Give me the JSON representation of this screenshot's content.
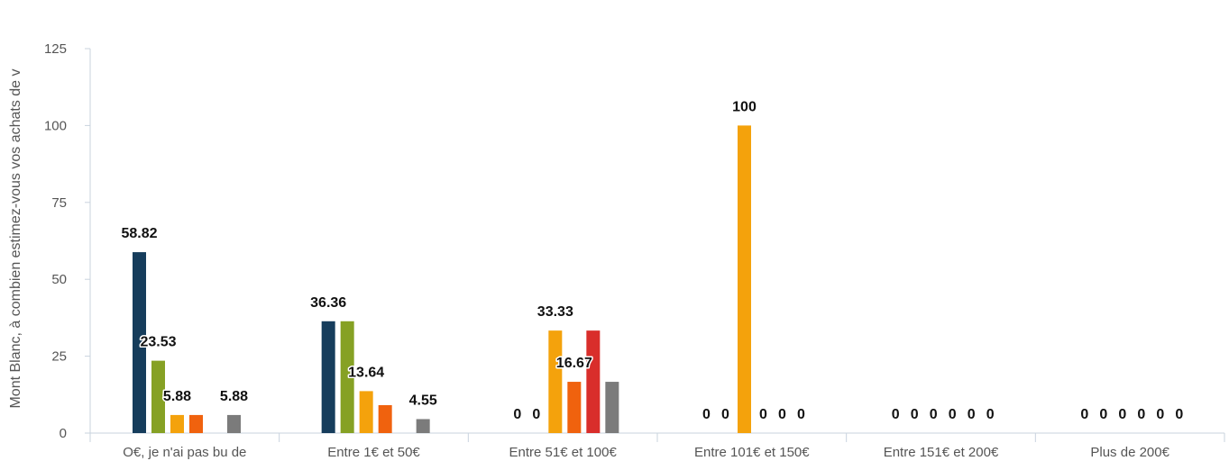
{
  "chart_data": {
    "type": "bar",
    "title": "",
    "xlabel": "",
    "ylabel": "Mont Blanc, à combien estimez-vous vos achats de v",
    "ylim": [
      0,
      125
    ],
    "yticks": [
      0,
      25,
      50,
      75,
      100,
      125
    ],
    "grid": false,
    "legend": "none",
    "categories": [
      "O€, je n'ai pas bu de",
      "Entre 1€ et 50€",
      "Entre 51€ et 100€",
      "Entre 101€ et 150€",
      "Entre 151€ et 200€",
      "Plus de 200€"
    ],
    "series": [
      {
        "color": "#163d5c",
        "values": [
          58.82,
          36.36,
          0,
          0,
          0,
          0
        ]
      },
      {
        "color": "#86a124",
        "values": [
          23.53,
          36.36,
          0,
          0,
          0,
          0
        ]
      },
      {
        "color": "#f4a20c",
        "values": [
          5.88,
          13.64,
          33.33,
          100,
          0,
          0
        ]
      },
      {
        "color": "#f0620e",
        "values": [
          5.88,
          9.09,
          16.67,
          0,
          0,
          0
        ]
      },
      {
        "color": "#d92e2b",
        "values": [
          0,
          0,
          33.33,
          0,
          0,
          0
        ]
      },
      {
        "color": "#7b7b7b",
        "values": [
          5.88,
          4.55,
          16.67,
          0,
          0,
          0
        ]
      }
    ],
    "data_labels": [
      {
        "category": 0,
        "series": 0,
        "text": "58.82"
      },
      {
        "category": 0,
        "series": 1,
        "text": "23.53"
      },
      {
        "category": 0,
        "series": 2,
        "text": "5.88"
      },
      {
        "category": 0,
        "series": 5,
        "text": "5.88"
      },
      {
        "category": 1,
        "series": 0,
        "text": "36.36"
      },
      {
        "category": 1,
        "series": 2,
        "text": "13.64"
      },
      {
        "category": 1,
        "series": 5,
        "text": "4.55"
      },
      {
        "category": 2,
        "series": 0,
        "text": "0"
      },
      {
        "category": 2,
        "series": 1,
        "text": "0"
      },
      {
        "category": 2,
        "series": 2,
        "text": "33.33"
      },
      {
        "category": 2,
        "series": 3,
        "text": "16.67"
      },
      {
        "category": 3,
        "series": 0,
        "text": "0"
      },
      {
        "category": 3,
        "series": 1,
        "text": "0"
      },
      {
        "category": 3,
        "series": 2,
        "text": "100"
      },
      {
        "category": 3,
        "series": 3,
        "text": "0"
      },
      {
        "category": 3,
        "series": 4,
        "text": "0"
      },
      {
        "category": 3,
        "series": 5,
        "text": "0"
      },
      {
        "category": 4,
        "series": 0,
        "text": "0"
      },
      {
        "category": 4,
        "series": 1,
        "text": "0"
      },
      {
        "category": 4,
        "series": 2,
        "text": "0"
      },
      {
        "category": 4,
        "series": 3,
        "text": "0"
      },
      {
        "category": 4,
        "series": 4,
        "text": "0"
      },
      {
        "category": 4,
        "series": 5,
        "text": "0"
      },
      {
        "category": 5,
        "series": 0,
        "text": "0"
      },
      {
        "category": 5,
        "series": 1,
        "text": "0"
      },
      {
        "category": 5,
        "series": 2,
        "text": "0"
      },
      {
        "category": 5,
        "series": 3,
        "text": "0"
      },
      {
        "category": 5,
        "series": 4,
        "text": "0"
      },
      {
        "category": 5,
        "series": 5,
        "text": "0"
      }
    ]
  }
}
